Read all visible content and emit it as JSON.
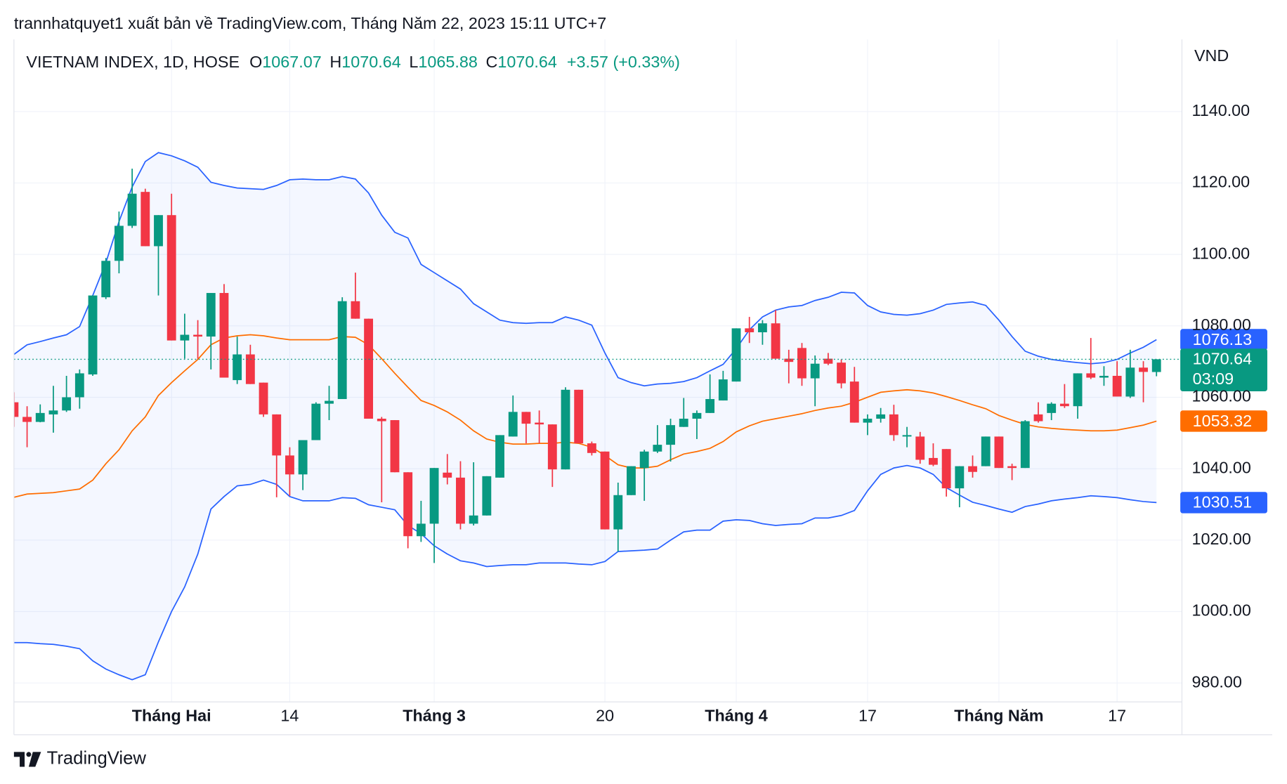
{
  "header": {
    "publisher": "trannhatquyet1 xuất bản về TradingView.com, Tháng Năm 22, 2023 15:11 UTC+7"
  },
  "chart_data": {
    "type": "candlestick",
    "title": "VIETNAM INDEX, 1D, HOSE",
    "legend": {
      "open_label": "O",
      "high_label": "H",
      "low_label": "L",
      "close_label": "C",
      "change": "+3.57 (+0.33%)"
    },
    "countdown": "03:09",
    "y_unit": "VND",
    "up_color": "#089981",
    "down_color": "#f23645",
    "categories": [
      null,
      null,
      null,
      null,
      null,
      null,
      null,
      null,
      null,
      null,
      null,
      null,
      "Tháng Hai",
      null,
      null,
      null,
      null,
      null,
      null,
      null,
      null,
      "14",
      null,
      null,
      null,
      null,
      null,
      null,
      null,
      null,
      null,
      null,
      "Tháng 3",
      null,
      null,
      null,
      null,
      null,
      null,
      null,
      null,
      null,
      null,
      null,
      null,
      "20",
      null,
      null,
      null,
      null,
      null,
      null,
      null,
      null,
      null,
      "Tháng 4",
      null,
      null,
      null,
      null,
      null,
      null,
      null,
      null,
      null,
      "17",
      null,
      null,
      null,
      null,
      null,
      null,
      null,
      null,
      null,
      "Tháng Năm",
      null,
      null,
      null,
      null,
      null,
      null,
      null,
      null,
      "17",
      null,
      null,
      null
    ],
    "open": [
      1058.6,
      1054.5,
      1053.1,
      1055.2,
      1056.3,
      1060,
      1066.4,
      1088,
      1098.2,
      1108,
      1117.5,
      1102.3,
      1111,
      1075.9,
      1077.5,
      1077,
      1089.2,
      1064.8,
      1072,
      1064.1,
      1055.2,
      1043.7,
      1038.4,
      1048,
      1058.2,
      1059.5,
      1086.9,
      1082,
      1054,
      1053.6,
      1039,
      1021.1,
      1024.6,
      1038.9,
      1037.5,
      1024.6,
      1026.9,
      1037.5,
      1049,
      1055.9,
      1052.9,
      1052.4,
      1039.8,
      1062.1,
      1047.1,
      1044.8,
      1023,
      1032.6,
      1040.2,
      1044.8,
      1046.7,
      1051.7,
      1054,
      1055.6,
      1059.1,
      1064.4,
      1079.3,
      1078.2,
      1080.7,
      1070.8,
      1073.8,
      1065.3,
      1070.8,
      1069.7,
      1064.4,
      1052.9,
      1054,
      1055.2,
      1049,
      1049,
      1043,
      1045.5,
      1034.5,
      1040.7,
      1040.7,
      1049,
      1040.7,
      1040.2,
      1055.2,
      1055.6,
      1058.2,
      1057.5,
      1066.7,
      1065.5,
      1066,
      1060.2,
      1068.3,
      1067.07
    ],
    "high": [
      1061.4,
      1057.5,
      1058,
      1063.2,
      1066,
      1067.8,
      1088.5,
      1099,
      1112,
      1124,
      1118.4,
      1111,
      1117,
      1083.4,
      1081.6,
      1089.2,
      1091.7,
      1077,
      1074.7,
      1064.1,
      1055.2,
      1046,
      1048,
      1058.6,
      1063.2,
      1088,
      1094.9,
      1082,
      1054.5,
      1053.6,
      1039,
      1031,
      1040.2,
      1044.1,
      1042.1,
      1041.8,
      1037.9,
      1049.4,
      1060.5,
      1055.9,
      1056.3,
      1052.4,
      1062.8,
      1062.1,
      1047.6,
      1044.8,
      1036.1,
      1040.7,
      1045.3,
      1052.2,
      1054,
      1059.8,
      1056.3,
      1066.4,
      1067.4,
      1079.3,
      1082.5,
      1081.6,
      1084.4,
      1073.3,
      1075.2,
      1071.7,
      1072.4,
      1070.6,
      1068.5,
      1055.2,
      1057,
      1057.9,
      1051.7,
      1050.3,
      1047.1,
      1045.5,
      1040.7,
      1043.7,
      1049,
      1049,
      1041.4,
      1053.6,
      1058.6,
      1058.6,
      1063.7,
      1066.7,
      1076.6,
      1068.7,
      1070.1,
      1073.3,
      1070.1,
      1070.64
    ],
    "low": [
      1051.7,
      1046,
      1053,
      1050.1,
      1055.9,
      1056.8,
      1066,
      1087.5,
      1094.7,
      1107.4,
      1102.3,
      1088.5,
      1075.9,
      1070.8,
      1070.8,
      1067.8,
      1065.5,
      1063.7,
      1063.7,
      1054.5,
      1032,
      1032.4,
      1034,
      1048,
      1053.6,
      1059.5,
      1082,
      1054,
      1030.6,
      1039,
      1017.7,
      1019.5,
      1013.6,
      1035.6,
      1023,
      1024.1,
      1026.9,
      1037.5,
      1049,
      1047.1,
      1047.1,
      1034.9,
      1039.8,
      1047.1,
      1043.7,
      1023,
      1016.8,
      1032.6,
      1031,
      1044.4,
      1042,
      1051.7,
      1048.3,
      1055.6,
      1059.1,
      1064.4,
      1075.2,
      1074.7,
      1070.8,
      1063.9,
      1063.2,
      1057.5,
      1069,
      1062.5,
      1052.9,
      1049.4,
      1052.9,
      1047.8,
      1046,
      1041.4,
      1040.7,
      1032.2,
      1029.2,
      1037.5,
      1040.7,
      1040.2,
      1036.8,
      1040.2,
      1052.9,
      1053.6,
      1057,
      1054,
      1065.1,
      1063.2,
      1060.2,
      1059.8,
      1058.6,
      1065.88
    ],
    "close": [
      1054.5,
      1053.1,
      1055.6,
      1056.3,
      1060,
      1066.7,
      1088.5,
      1098.2,
      1108,
      1117,
      1102.3,
      1111,
      1075.9,
      1077.5,
      1077,
      1089.2,
      1065.5,
      1072,
      1063.7,
      1055.2,
      1043.7,
      1038.4,
      1048,
      1058.2,
      1059,
      1086.9,
      1082,
      1054,
      1053.3,
      1039,
      1021.1,
      1024.6,
      1040.2,
      1037.5,
      1024.6,
      1026.9,
      1037.9,
      1049.4,
      1055.9,
      1052.6,
      1052.4,
      1039.8,
      1062.1,
      1047.1,
      1044.4,
      1023,
      1032.6,
      1040.7,
      1044.8,
      1046.7,
      1052.2,
      1054,
      1055.6,
      1059.5,
      1065,
      1079.3,
      1078.2,
      1080.7,
      1070.8,
      1069.9,
      1065.3,
      1069.4,
      1069.4,
      1063.9,
      1052.9,
      1054,
      1055.2,
      1049.4,
      1049.4,
      1042.5,
      1041.1,
      1034.5,
      1040.7,
      1039.1,
      1049,
      1040.2,
      1040.2,
      1053.3,
      1053.3,
      1058.2,
      1057.5,
      1066.7,
      1065.5,
      1066,
      1060.2,
      1068.3,
      1067.1,
      1070.64
    ],
    "band_fill": "#2962ff",
    "series": [
      {
        "color": "#2962ff",
        "values": [
          1072.0,
          1074.7,
          1075.6,
          1076.6,
          1077.5,
          1079.8,
          1088.5,
          1097.7,
          1109.2,
          1118.9,
          1126.0,
          1128.5,
          1127.6,
          1126.2,
          1124.4,
          1120.2,
          1119.3,
          1118.6,
          1118.4,
          1118.2,
          1119.3,
          1120.9,
          1121.1,
          1120.9,
          1120.9,
          1121.8,
          1121.1,
          1117.2,
          1111.0,
          1106.2,
          1104.6,
          1097.2,
          1094.9,
          1092.6,
          1090.3,
          1086.2,
          1083.9,
          1081.6,
          1080.9,
          1080.7,
          1080.9,
          1080.9,
          1082.5,
          1081.6,
          1080.2,
          1072.4,
          1065.5,
          1064.1,
          1063.2,
          1063.7,
          1063.9,
          1064.4,
          1065.5,
          1067.4,
          1069.2,
          1073.6,
          1078.9,
          1082.5,
          1084.4,
          1085.3,
          1085.7,
          1087.1,
          1088.0,
          1089.4,
          1089.2,
          1085.7,
          1083.9,
          1083.2,
          1083.0,
          1083.4,
          1084.4,
          1086.0,
          1086.4,
          1086.7,
          1085.7,
          1081.6,
          1077.0,
          1072.9,
          1071.5,
          1070.6,
          1070.1,
          1069.7,
          1069.4,
          1069.7,
          1070.6,
          1072.4,
          1074.0,
          1076.13
        ]
      },
      {
        "color": "#ff6d00",
        "values": [
          1032.0,
          1032.9,
          1033.1,
          1033.3,
          1033.8,
          1034.3,
          1036.8,
          1041.4,
          1045.3,
          1050.6,
          1054.5,
          1060.5,
          1064.1,
          1067.4,
          1070.6,
          1074.7,
          1076.6,
          1077.2,
          1077.5,
          1077.2,
          1076.6,
          1076.1,
          1076.1,
          1076.1,
          1076.1,
          1077.0,
          1076.8,
          1074.7,
          1070.8,
          1066.7,
          1062.8,
          1059.1,
          1057.7,
          1055.9,
          1053.6,
          1050.6,
          1048.3,
          1047.4,
          1046.9,
          1046.9,
          1047.1,
          1047.1,
          1047.4,
          1047.1,
          1046.0,
          1043.7,
          1041.1,
          1040.2,
          1040.2,
          1040.7,
          1042.5,
          1044.1,
          1044.8,
          1045.7,
          1047.6,
          1050.3,
          1052.0,
          1053.3,
          1054.0,
          1054.7,
          1055.4,
          1056.3,
          1057.0,
          1057.5,
          1058.6,
          1060.0,
          1061.4,
          1061.8,
          1062.1,
          1061.8,
          1061.2,
          1060.2,
          1059.1,
          1057.9,
          1056.8,
          1054.9,
          1053.6,
          1052.4,
          1051.7,
          1051.3,
          1051.0,
          1050.8,
          1050.6,
          1050.6,
          1050.8,
          1051.5,
          1052.2,
          1053.32
        ]
      },
      {
        "color": "#2962ff",
        "values": [
          991.3,
          991.3,
          991.0,
          990.8,
          990.3,
          989.6,
          986.2,
          983.9,
          982.3,
          980.9,
          982.3,
          991.5,
          1000.0,
          1006.9,
          1016.1,
          1028.7,
          1032.2,
          1035.2,
          1035.6,
          1036.8,
          1035.6,
          1032.2,
          1031.0,
          1031.0,
          1031.0,
          1031.9,
          1031.7,
          1029.9,
          1029.2,
          1028.5,
          1024.1,
          1021.8,
          1018.4,
          1016.1,
          1014.2,
          1013.6,
          1012.6,
          1012.9,
          1013.1,
          1013.1,
          1013.6,
          1013.6,
          1013.6,
          1013.3,
          1013.1,
          1014.0,
          1016.8,
          1017.0,
          1017.2,
          1017.5,
          1020.0,
          1022.3,
          1022.8,
          1022.8,
          1025.3,
          1025.7,
          1025.5,
          1024.6,
          1024.1,
          1024.4,
          1024.6,
          1026.2,
          1026.2,
          1026.9,
          1028.3,
          1033.8,
          1038.4,
          1040.2,
          1040.9,
          1040.2,
          1038.4,
          1034.7,
          1032.6,
          1030.6,
          1029.7,
          1028.7,
          1027.8,
          1029.4,
          1030.1,
          1031.0,
          1031.5,
          1031.9,
          1032.4,
          1032.2,
          1031.9,
          1031.3,
          1030.8,
          1030.51
        ]
      }
    ],
    "ylim": [
      974.7,
      1160.2
    ],
    "yticks": [
      {
        "value": 980,
        "label": "980.00"
      },
      {
        "value": 1000,
        "label": "1000.00"
      },
      {
        "value": 1020,
        "label": "1020.00"
      },
      {
        "value": 1040,
        "label": "1040.00"
      },
      {
        "value": 1060,
        "label": "1060.00"
      },
      {
        "value": 1080,
        "label": "1080.00"
      },
      {
        "value": 1100,
        "label": "1100.00"
      },
      {
        "value": 1120,
        "label": "1120.00"
      },
      {
        "value": 1140,
        "label": "1140.00"
      }
    ],
    "grid": true
  },
  "footer": {
    "brand": "TradingView"
  }
}
